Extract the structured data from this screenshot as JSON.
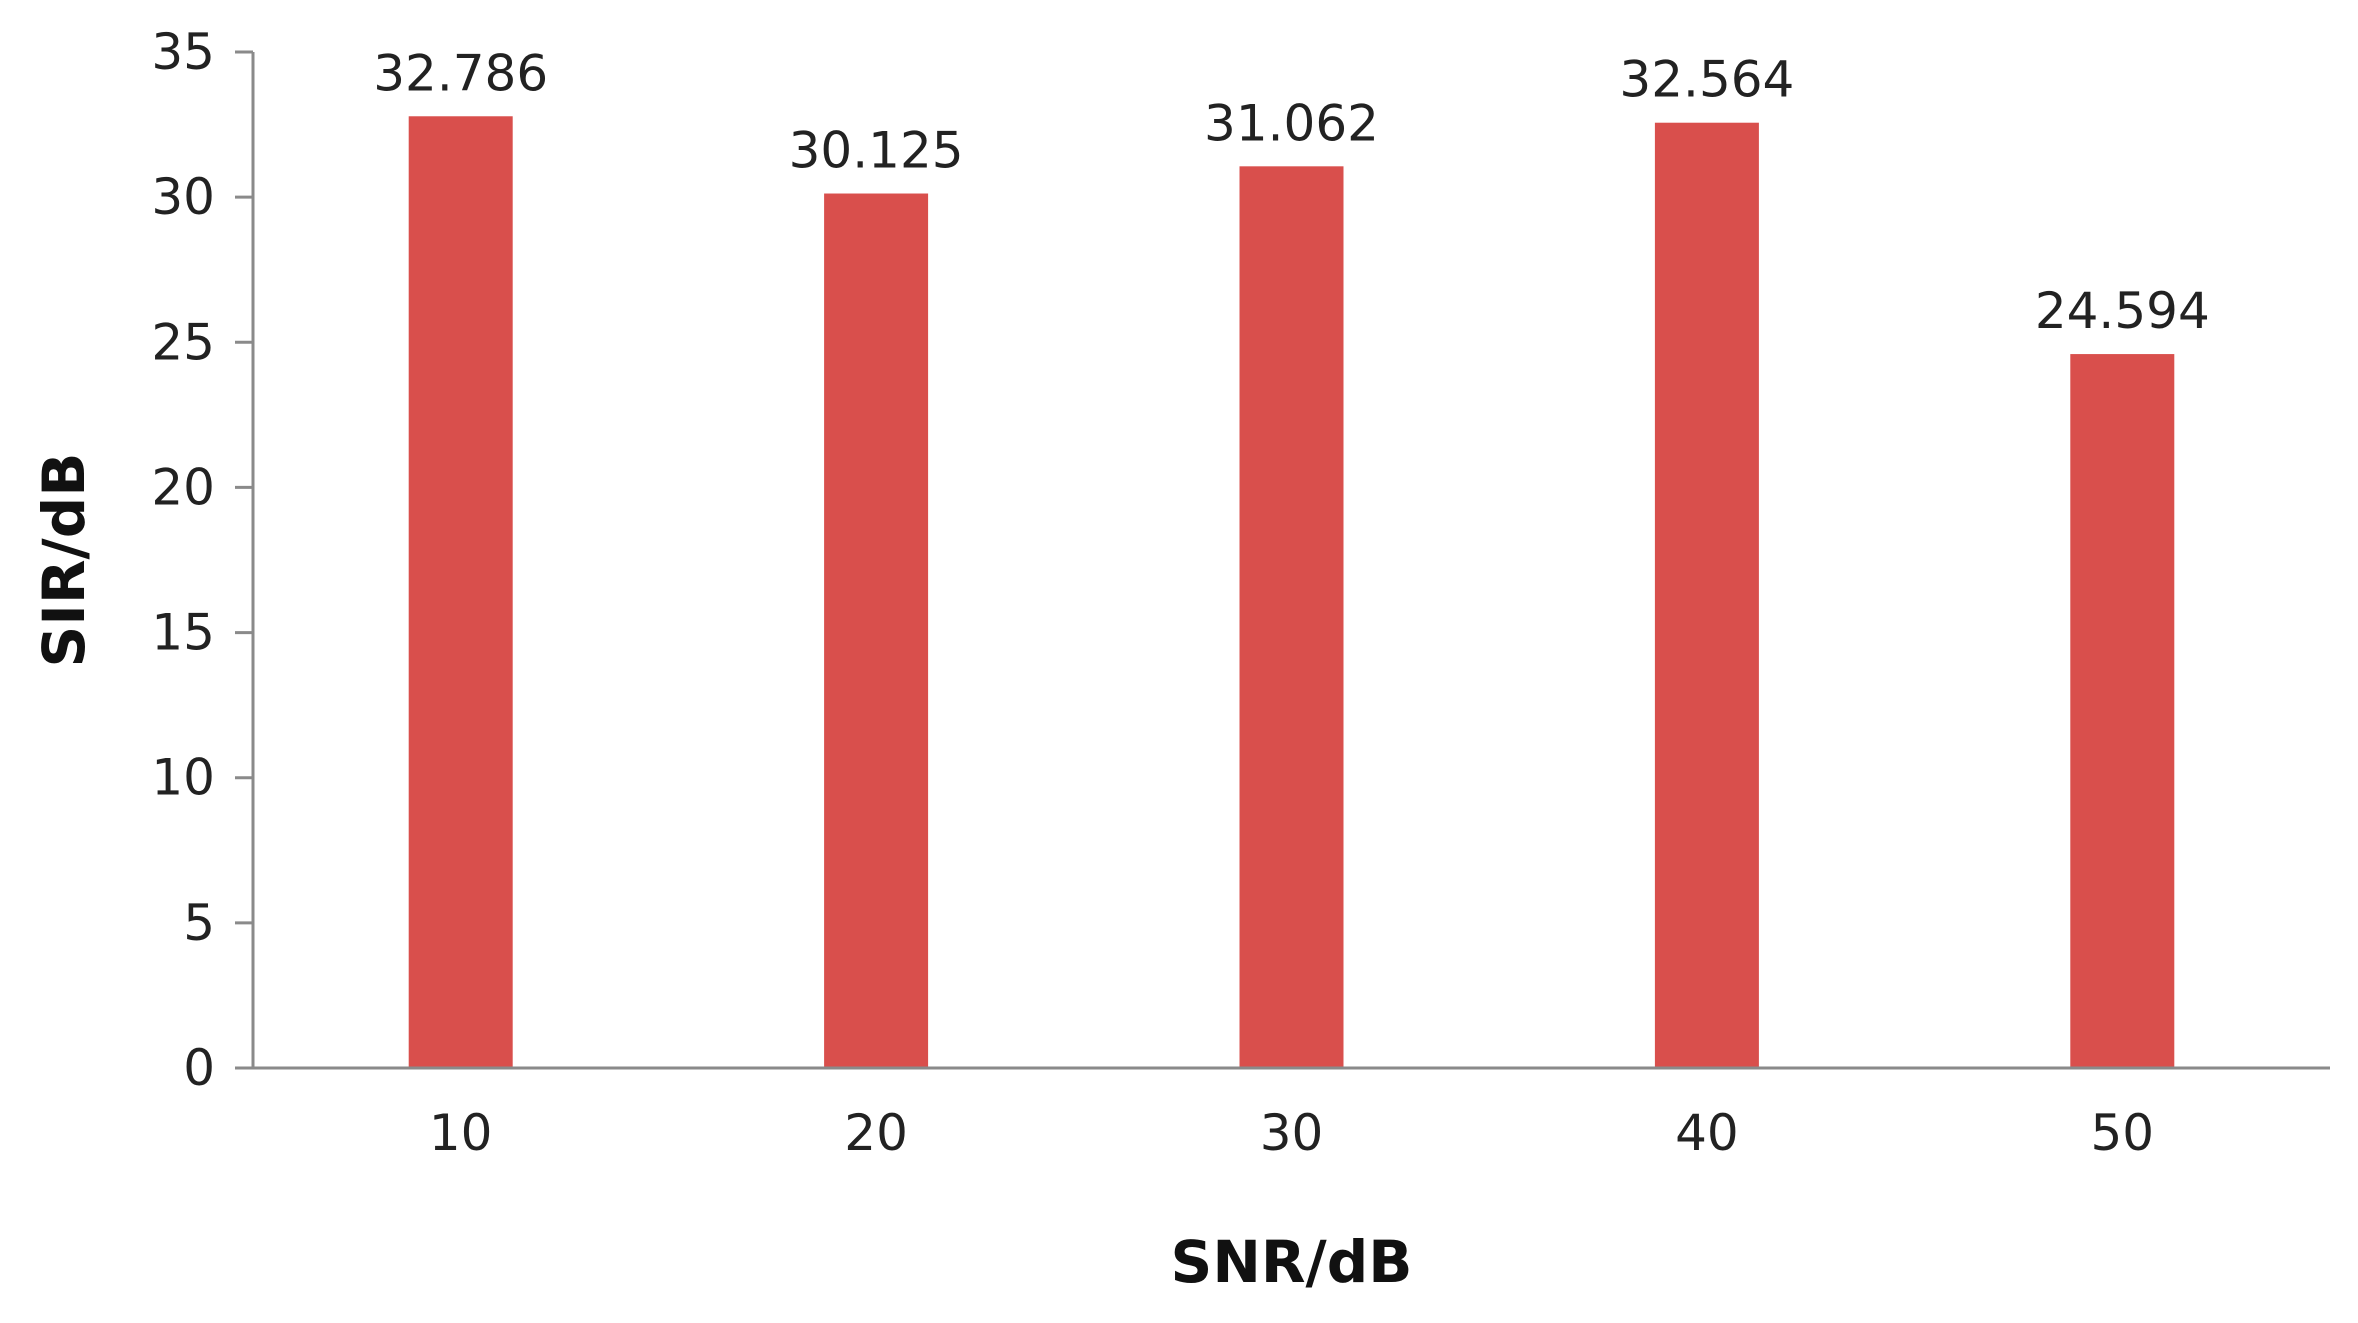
{
  "chart_data": {
    "type": "bar",
    "title": "",
    "xlabel": "SNR/dB",
    "ylabel": "SIR/dB",
    "categories": [
      "10",
      "20",
      "30",
      "40",
      "50"
    ],
    "values": [
      32.786,
      30.125,
      31.062,
      32.564,
      24.594
    ],
    "data_labels": [
      "32.786",
      "30.125",
      "31.062",
      "32.564",
      "24.594"
    ],
    "ylim": [
      0,
      35
    ],
    "yticks": [
      "0",
      "5",
      "10",
      "15",
      "20",
      "25",
      "30",
      "35"
    ],
    "grid": false,
    "legend": "none",
    "bar_color": "#d94f4c"
  }
}
